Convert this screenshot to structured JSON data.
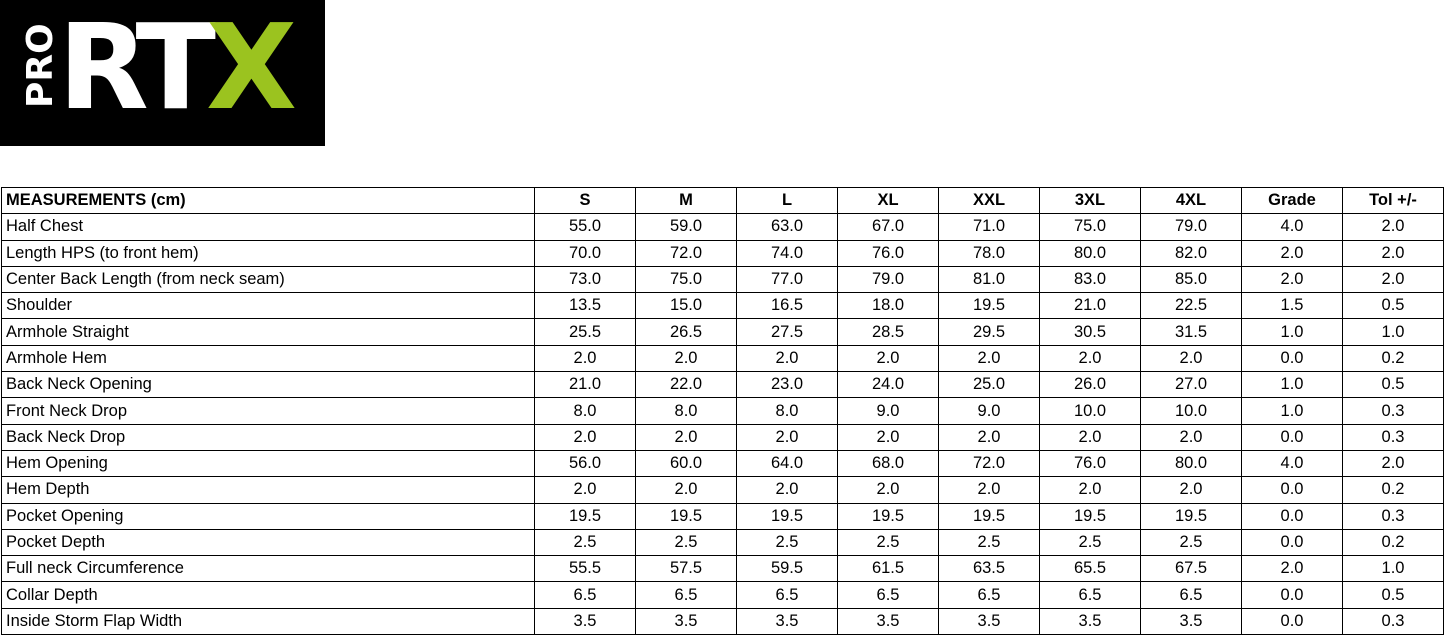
{
  "logo": {
    "text_small": "PRO",
    "text_main": "RT",
    "text_accent": "X",
    "accent_color": "#9BC31F",
    "background": "#000000"
  },
  "table": {
    "headers": [
      "MEASUREMENTS (cm)",
      "S",
      "M",
      "L",
      "XL",
      "XXL",
      "3XL",
      "4XL",
      "Grade",
      "Tol +/-"
    ],
    "rows": [
      [
        "Half Chest",
        "55.0",
        "59.0",
        "63.0",
        "67.0",
        "71.0",
        "75.0",
        "79.0",
        "4.0",
        "2.0"
      ],
      [
        "Length HPS (to front hem)",
        "70.0",
        "72.0",
        "74.0",
        "76.0",
        "78.0",
        "80.0",
        "82.0",
        "2.0",
        "2.0"
      ],
      [
        "Center Back Length (from neck seam)",
        "73.0",
        "75.0",
        "77.0",
        "79.0",
        "81.0",
        "83.0",
        "85.0",
        "2.0",
        "2.0"
      ],
      [
        "Shoulder",
        "13.5",
        "15.0",
        "16.5",
        "18.0",
        "19.5",
        "21.0",
        "22.5",
        "1.5",
        "0.5"
      ],
      [
        "Armhole Straight",
        "25.5",
        "26.5",
        "27.5",
        "28.5",
        "29.5",
        "30.5",
        "31.5",
        "1.0",
        "1.0"
      ],
      [
        "Armhole Hem",
        "2.0",
        "2.0",
        "2.0",
        "2.0",
        "2.0",
        "2.0",
        "2.0",
        "0.0",
        "0.2"
      ],
      [
        "Back Neck Opening",
        "21.0",
        "22.0",
        "23.0",
        "24.0",
        "25.0",
        "26.0",
        "27.0",
        "1.0",
        "0.5"
      ],
      [
        "Front Neck Drop",
        "8.0",
        "8.0",
        "8.0",
        "9.0",
        "9.0",
        "10.0",
        "10.0",
        "1.0",
        "0.3"
      ],
      [
        "Back Neck Drop",
        "2.0",
        "2.0",
        "2.0",
        "2.0",
        "2.0",
        "2.0",
        "2.0",
        "0.0",
        "0.3"
      ],
      [
        "Hem Opening",
        "56.0",
        "60.0",
        "64.0",
        "68.0",
        "72.0",
        "76.0",
        "80.0",
        "4.0",
        "2.0"
      ],
      [
        "Hem Depth",
        "2.0",
        "2.0",
        "2.0",
        "2.0",
        "2.0",
        "2.0",
        "2.0",
        "0.0",
        "0.2"
      ],
      [
        "Pocket Opening",
        "19.5",
        "19.5",
        "19.5",
        "19.5",
        "19.5",
        "19.5",
        "19.5",
        "0.0",
        "0.3"
      ],
      [
        "Pocket Depth",
        "2.5",
        "2.5",
        "2.5",
        "2.5",
        "2.5",
        "2.5",
        "2.5",
        "0.0",
        "0.2"
      ],
      [
        "Full neck Circumference",
        "55.5",
        "57.5",
        "59.5",
        "61.5",
        "63.5",
        "65.5",
        "67.5",
        "2.0",
        "1.0"
      ],
      [
        "Collar Depth",
        "6.5",
        "6.5",
        "6.5",
        "6.5",
        "6.5",
        "6.5",
        "6.5",
        "0.0",
        "0.5"
      ],
      [
        "Inside Storm Flap Width",
        "3.5",
        "3.5",
        "3.5",
        "3.5",
        "3.5",
        "3.5",
        "3.5",
        "0.0",
        "0.3"
      ]
    ]
  }
}
